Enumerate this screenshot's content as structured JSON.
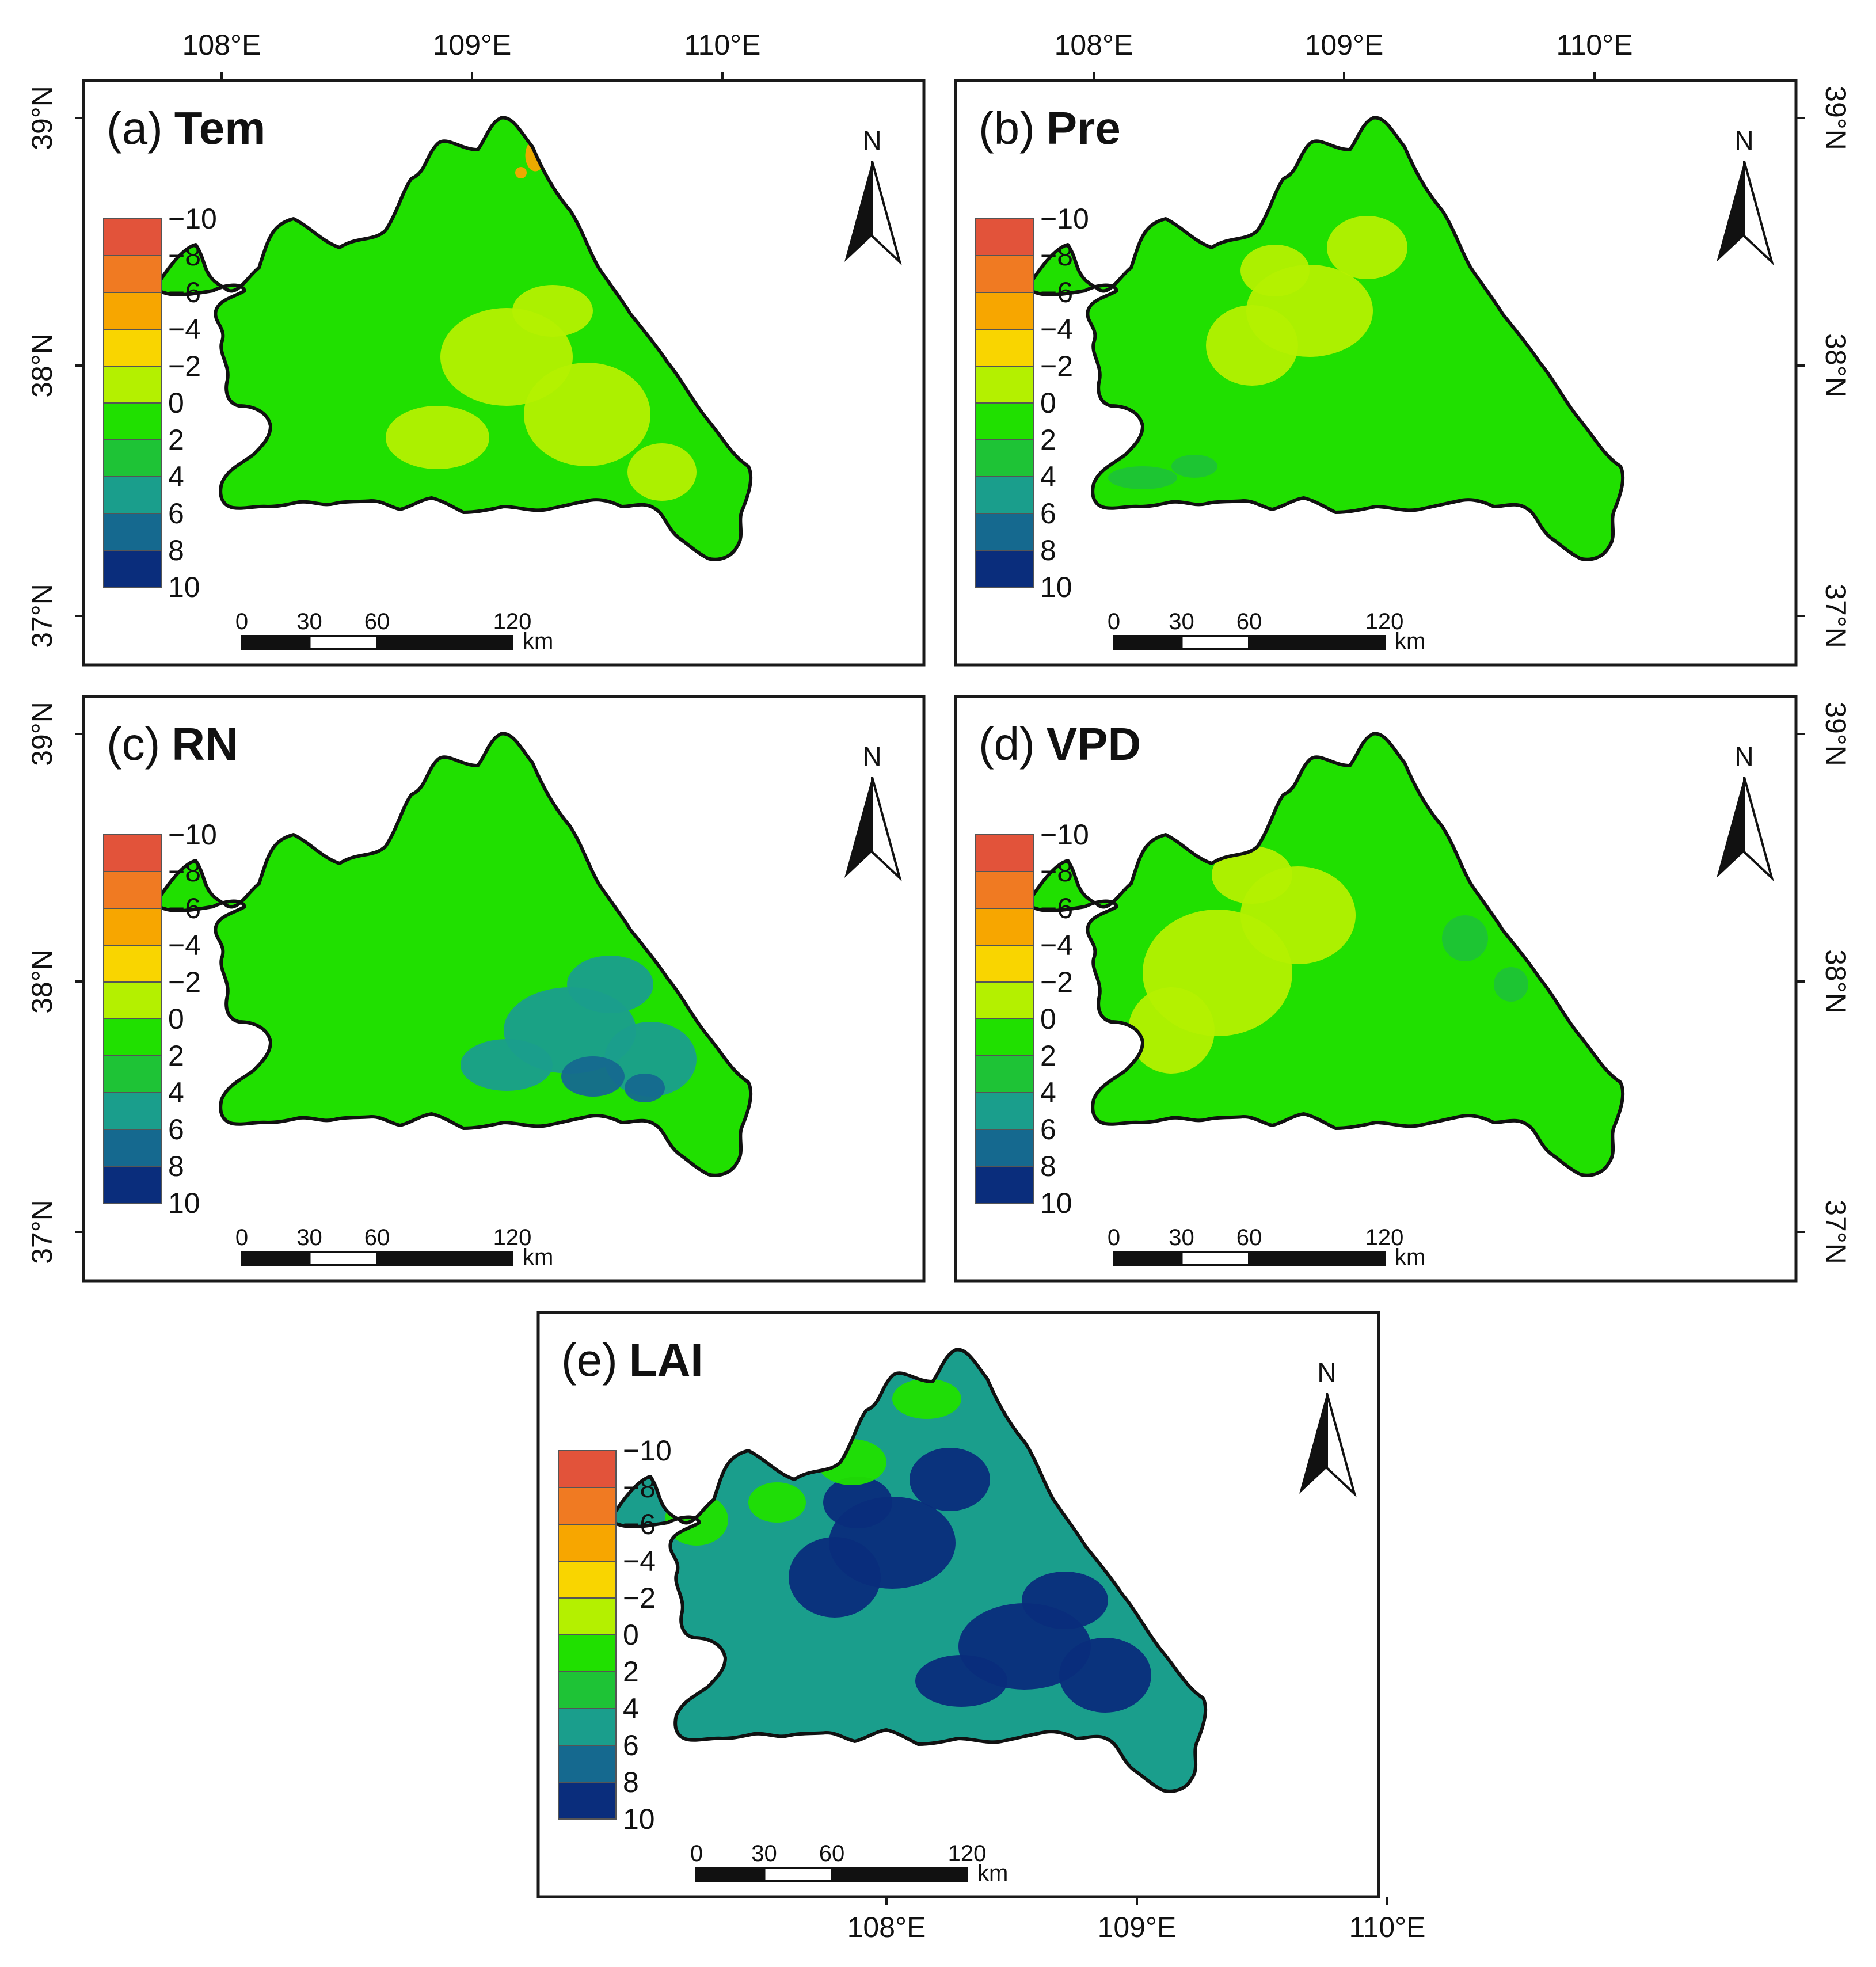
{
  "axes": {
    "longitude_labels": [
      "108°E",
      "109°E",
      "110°E"
    ],
    "latitude_labels": [
      "37°N",
      "38°N",
      "39°N"
    ]
  },
  "legend": {
    "labels": [
      "−10",
      "−8",
      "−6",
      "−4",
      "−2",
      "0",
      "2",
      "4",
      "6",
      "8",
      "10"
    ],
    "colors": [
      "#e2533a",
      "#f07a22",
      "#f7a600",
      "#f9d500",
      "#b4f000",
      "#20e000",
      "#1ec336",
      "#1a9e8c",
      "#15698f",
      "#0a2d7c"
    ]
  },
  "scale_bar": {
    "ticks": [
      "0",
      "30",
      "60",
      "120"
    ],
    "unit": "km"
  },
  "north_arrow_label": "N",
  "panels": [
    {
      "id": "a",
      "letter": "(a)",
      "variable": "Tem",
      "base_color": "#20e000",
      "region_tints": [
        {
          "zone": "east",
          "color": "#b4f000"
        },
        {
          "zone": "north-edge",
          "color": "#f7a600"
        }
      ]
    },
    {
      "id": "b",
      "letter": "(b)",
      "variable": "Pre",
      "base_color": "#20e000",
      "region_tints": [
        {
          "zone": "center",
          "color": "#b4f000"
        },
        {
          "zone": "south-west",
          "color": "#1ec336"
        }
      ]
    },
    {
      "id": "c",
      "letter": "(c)",
      "variable": "RN",
      "base_color": "#20e000",
      "region_tints": [
        {
          "zone": "south-east",
          "color": "#1a9e8c"
        },
        {
          "zone": "south-core",
          "color": "#15698f"
        }
      ]
    },
    {
      "id": "d",
      "letter": "(d)",
      "variable": "VPD",
      "base_color": "#20e000",
      "region_tints": [
        {
          "zone": "west",
          "color": "#b4f000"
        },
        {
          "zone": "north-east",
          "color": "#1ec336"
        }
      ]
    },
    {
      "id": "e",
      "letter": "(e)",
      "variable": "LAI",
      "base_color": "#1a9e8c",
      "region_tints": [
        {
          "zone": "center",
          "color": "#0a2d7c"
        },
        {
          "zone": "north-west",
          "color": "#20e000"
        },
        {
          "zone": "south-east",
          "color": "#0a2d7c"
        }
      ]
    }
  ]
}
